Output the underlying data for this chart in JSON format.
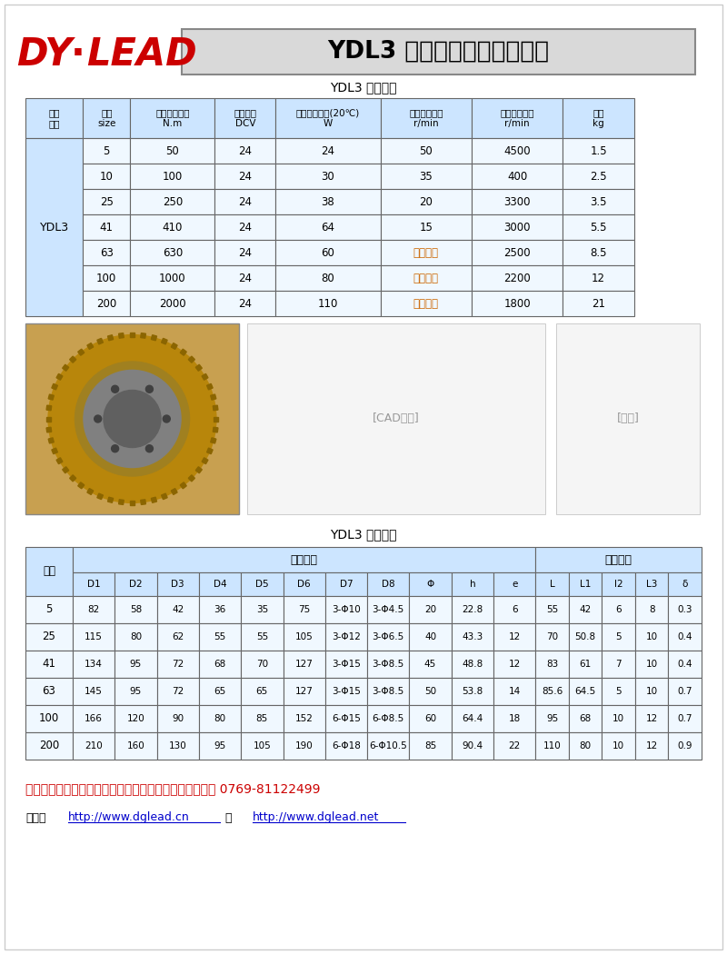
{
  "title": "YDL3 系列牙楔式电磁离合器",
  "logo_text": "DY·LEAD",
  "bg_color": "#ffffff",
  "table1_title": "YDL3 性能参数",
  "table1_headers": [
    "产品\n系列",
    "规格\nsize",
    "额定传递力矩\nN.m",
    "额定电压\nDCV",
    "线圈消耗功率(20℃)\nW",
    "允许最高转速\nr/min",
    "允许最高转速\nr/min",
    "重量\nkg"
  ],
  "table1_col_props": [
    0.085,
    0.07,
    0.125,
    0.09,
    0.155,
    0.135,
    0.135,
    0.105
  ],
  "table1_data": [
    [
      "YDL3",
      "5",
      "50",
      "24",
      "24",
      "50",
      "4500",
      "1.5"
    ],
    [
      "",
      "10",
      "100",
      "24",
      "30",
      "35",
      "400",
      "2.5"
    ],
    [
      "",
      "25",
      "250",
      "24",
      "38",
      "20",
      "3300",
      "3.5"
    ],
    [
      "",
      "41",
      "410",
      "24",
      "64",
      "15",
      "3000",
      "5.5"
    ],
    [
      "",
      "63",
      "630",
      "24",
      "60",
      "相对静止",
      "2500",
      "8.5"
    ],
    [
      "",
      "100",
      "1000",
      "24",
      "80",
      "相对静止",
      "2200",
      "12"
    ],
    [
      "",
      "200",
      "2000",
      "24",
      "110",
      "相对静止",
      "1800",
      "21"
    ]
  ],
  "table1_header_bg": "#cce5ff",
  "table1_data_bg": "#f0f8ff",
  "table2_title": "YDL3 尺寸参数",
  "radial_cols": [
    "D1",
    "D2",
    "D3",
    "D4",
    "D5",
    "D6",
    "D7",
    "D8",
    "Φ",
    "h",
    "e"
  ],
  "axial_cols": [
    "L",
    "L1",
    "l2",
    "L3",
    "δ"
  ],
  "table2_data": [
    [
      "5",
      "82",
      "58",
      "42",
      "36",
      "35",
      "75",
      "3-Φ10",
      "3-Φ4.5",
      "20",
      "22.8",
      "6",
      "55",
      "42",
      "6",
      "8",
      "0.3"
    ],
    [
      "25",
      "115",
      "80",
      "62",
      "55",
      "55",
      "105",
      "3-Φ12",
      "3-Φ6.5",
      "40",
      "43.3",
      "12",
      "70",
      "50.8",
      "5",
      "10",
      "0.4"
    ],
    [
      "41",
      "134",
      "95",
      "72",
      "68",
      "70",
      "127",
      "3-Φ15",
      "3-Φ8.5",
      "45",
      "48.8",
      "12",
      "83",
      "61",
      "7",
      "10",
      "0.4"
    ],
    [
      "63",
      "145",
      "95",
      "72",
      "65",
      "65",
      "127",
      "3-Φ15",
      "3-Φ8.5",
      "50",
      "53.8",
      "14",
      "85.6",
      "64.5",
      "5",
      "10",
      "0.7"
    ],
    [
      "100",
      "166",
      "120",
      "90",
      "80",
      "85",
      "152",
      "6-Φ15",
      "6-Φ8.5",
      "60",
      "64.4",
      "18",
      "95",
      "68",
      "10",
      "12",
      "0.7"
    ],
    [
      "200",
      "210",
      "160",
      "130",
      "95",
      "105",
      "190",
      "6-Φ18",
      "6-Φ10.5",
      "85",
      "90.4",
      "22",
      "110",
      "80",
      "10",
      "12",
      "0.9"
    ]
  ],
  "table2_header_bg": "#cce5ff",
  "table2_data_bg": "#f0f8ff",
  "contact_text": "更多产品详情请咨询我们的技术人员，我公司技术部电话 0769-81122499",
  "website_prefix": "网址：",
  "website_url1": "http://www.dglead.cn",
  "website_mid": " 或 ",
  "website_url2": "http://www.dglead.net"
}
